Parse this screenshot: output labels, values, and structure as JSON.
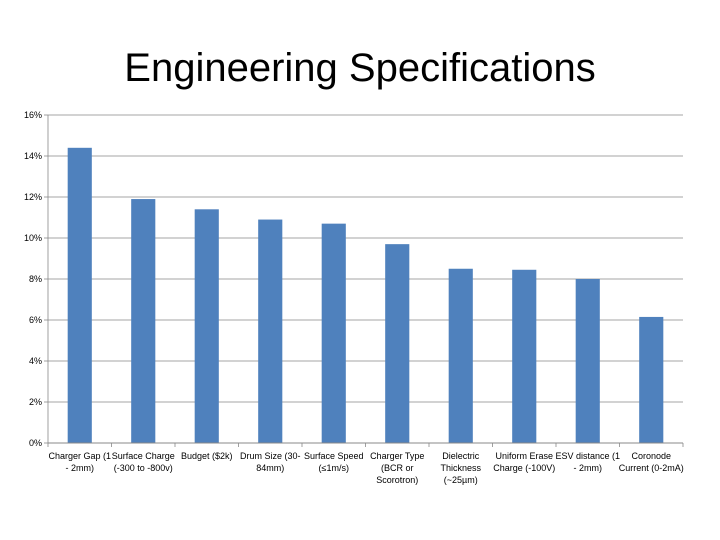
{
  "slide": {
    "title": "Engineering Specifications"
  },
  "chart_data": {
    "type": "bar",
    "title": "",
    "xlabel": "",
    "ylabel": "",
    "ylim": [
      0,
      16
    ],
    "y_ticks": [
      0,
      2,
      4,
      6,
      8,
      10,
      12,
      14,
      16
    ],
    "y_tick_labels": [
      "0%",
      "2%",
      "4%",
      "6%",
      "8%",
      "10%",
      "12%",
      "14%",
      "16%"
    ],
    "grid": true,
    "legend": "none",
    "bar_color": "#4F81BD",
    "categories": [
      "Charger Gap (1 - 2mm)",
      "Surface Charge (-300 to -800v)",
      "Budget ($2k)",
      "Drum Size (30-84mm)",
      "Surface Speed (≤1m/s)",
      "Charger Type (BCR or Scorotron)",
      "Dielectric Thickness (~25µm)",
      "Uniform Erase Charge (-100V)",
      "ESV distance (1 - 2mm)",
      "Coronode Current (0-2mA)"
    ],
    "values": [
      14.4,
      11.9,
      11.4,
      10.9,
      10.7,
      9.7,
      8.5,
      8.45,
      8.0,
      6.15
    ]
  }
}
